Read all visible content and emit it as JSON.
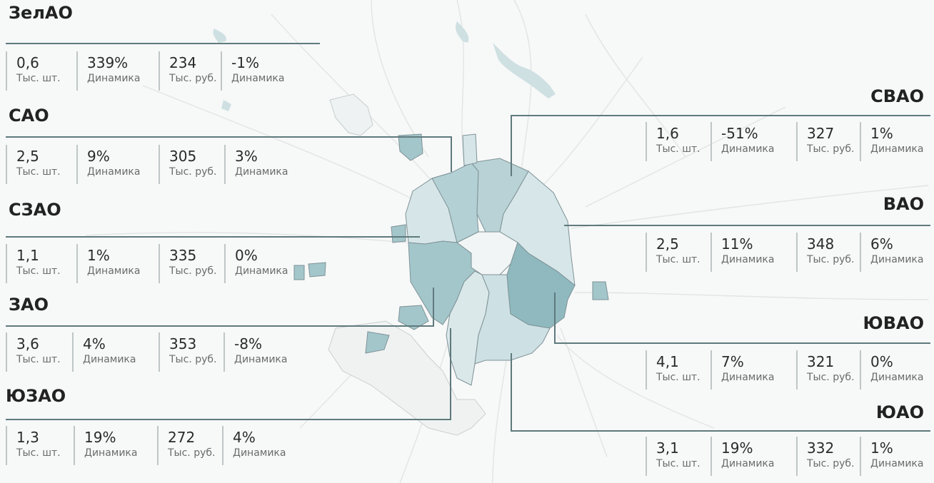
{
  "colors": {
    "background": "#f7f8f8",
    "leader_line": "#5f7a7d",
    "district_light": "#dce8ea",
    "district_mid": "#b3d0d5",
    "district_dark": "#8fb9bf",
    "district_border": "#7e9296",
    "water": "#c9dde0",
    "roads": "#e4e6e6"
  },
  "districts": [
    {
      "name": "ЗелАО",
      "items": [
        {
          "value": "0,6",
          "label": "Тыс. шт."
        },
        {
          "value": "339%",
          "label": "Динамика"
        },
        {
          "value": "234",
          "label": "Тыс. руб."
        },
        {
          "value": "-1%",
          "label": "Динамика"
        }
      ]
    },
    {
      "name": "САО",
      "items": [
        {
          "value": "2,5",
          "label": "Тыс. шт."
        },
        {
          "value": "9%",
          "label": "Динамика"
        },
        {
          "value": "305",
          "label": "Тыс. руб."
        },
        {
          "value": "3%",
          "label": "Динамика"
        }
      ]
    },
    {
      "name": "СЗАО",
      "items": [
        {
          "value": "1,1",
          "label": "Тыс. шт."
        },
        {
          "value": "1%",
          "label": "Динамика"
        },
        {
          "value": "335",
          "label": "Тыс. руб."
        },
        {
          "value": "0%",
          "label": "Динамика"
        }
      ]
    },
    {
      "name": "ЗАО",
      "items": [
        {
          "value": "3,6",
          "label": "Тыс. шт."
        },
        {
          "value": "4%",
          "label": "Динамика"
        },
        {
          "value": "353",
          "label": "Тыс. руб."
        },
        {
          "value": "-8%",
          "label": "Динамика"
        }
      ]
    },
    {
      "name": "ЮЗАО",
      "items": [
        {
          "value": "1,3",
          "label": "Тыс. шт."
        },
        {
          "value": "19%",
          "label": "Динамика"
        },
        {
          "value": "272",
          "label": "Тыс. руб."
        },
        {
          "value": "4%",
          "label": "Динамика"
        }
      ]
    },
    {
      "name": "СВАО",
      "items": [
        {
          "value": "1,6",
          "label": "Тыс. шт."
        },
        {
          "value": "-51%",
          "label": "Динамика"
        },
        {
          "value": "327",
          "label": "Тыс. руб."
        },
        {
          "value": "1%",
          "label": "Динамика"
        }
      ]
    },
    {
      "name": "ВАО",
      "items": [
        {
          "value": "2,5",
          "label": "Тыс. шт."
        },
        {
          "value": "11%",
          "label": "Динамика"
        },
        {
          "value": "348",
          "label": "Тыс. руб."
        },
        {
          "value": "6%",
          "label": "Динамика"
        }
      ]
    },
    {
      "name": "ЮВАО",
      "items": [
        {
          "value": "4,1",
          "label": "Тыс. шт."
        },
        {
          "value": "7%",
          "label": "Динамика"
        },
        {
          "value": "321",
          "label": "Тыс. руб."
        },
        {
          "value": "0%",
          "label": "Динамика"
        }
      ]
    },
    {
      "name": "ЮАО",
      "items": [
        {
          "value": "3,1",
          "label": "Тыс. шт."
        },
        {
          "value": "19%",
          "label": "Динамика"
        },
        {
          "value": "332",
          "label": "Тыс. руб."
        },
        {
          "value": "1%",
          "label": "Динамика"
        }
      ]
    }
  ]
}
